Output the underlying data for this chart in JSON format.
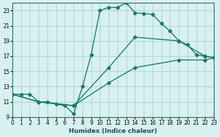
{
  "xlabel": "Humidex (Indice chaleur)",
  "ylabel": "",
  "bg_color": "#d8f0f0",
  "grid_color": "#b0d8d8",
  "line_color": "#1a7a6a",
  "xlim": [
    0,
    23
  ],
  "ylim": [
    9,
    24
  ],
  "xticks": [
    0,
    1,
    2,
    3,
    4,
    5,
    6,
    7,
    8,
    9,
    10,
    11,
    12,
    13,
    14,
    15,
    16,
    17,
    18,
    19,
    20,
    21,
    22,
    23
  ],
  "yticks": [
    9,
    11,
    13,
    15,
    17,
    19,
    21,
    23
  ],
  "line1": {
    "x": [
      0,
      1,
      2,
      3,
      4,
      5,
      6,
      7,
      8,
      9,
      10,
      11,
      12,
      13,
      14,
      15,
      16,
      17,
      18,
      19,
      20,
      21,
      22,
      23
    ],
    "y": [
      12,
      12,
      12,
      11,
      11,
      10.7,
      10.5,
      9.4,
      13,
      17.2,
      23,
      23.4,
      23.4,
      24,
      22.7,
      22.6,
      22.5,
      21.3,
      20.3,
      19,
      18.5,
      17.2,
      17,
      16.8
    ]
  },
  "line2": {
    "x": [
      0,
      3,
      7,
      11,
      14,
      19,
      22,
      23
    ],
    "y": [
      12,
      11,
      10.5,
      15.5,
      19.5,
      19,
      17,
      16.8
    ]
  },
  "line3": {
    "x": [
      0,
      3,
      7,
      11,
      14,
      19,
      22,
      23
    ],
    "y": [
      12,
      11,
      10.5,
      13.5,
      15.5,
      16.5,
      16.5,
      16.8
    ]
  }
}
